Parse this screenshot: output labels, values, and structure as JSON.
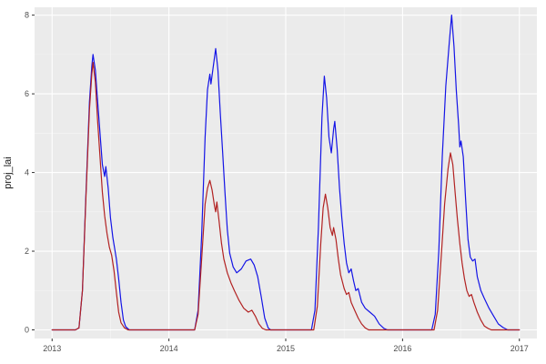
{
  "chart_data": {
    "type": "line",
    "title": "",
    "xlabel": "",
    "ylabel": "proj_lai",
    "grid": true,
    "legend": "none",
    "x_domain": [
      2012.85,
      2017.15
    ],
    "y_domain": [
      -0.22,
      8.2
    ],
    "x_major_ticks": [
      2013,
      2014,
      2015,
      2016,
      2017
    ],
    "x_tick_labels": [
      "2013",
      "2014",
      "2015",
      "2016",
      "2017"
    ],
    "x_minor_ticks": [
      2013.5,
      2014.5,
      2015.5,
      2016.5
    ],
    "y_major_ticks": [
      0,
      2,
      4,
      6,
      8
    ],
    "y_tick_labels": [
      "0",
      "2",
      "4",
      "6",
      "8"
    ],
    "y_minor_ticks": [
      1,
      3,
      5,
      7
    ],
    "colors": {
      "panel_background": "#EBEBEB",
      "plot_background": "#FFFFFF",
      "grid_major": "#FFFFFF",
      "grid_minor": "#F5F5F5",
      "tick_mark": "#333333",
      "tick_text": "#4D4D4D",
      "axis_title": "#1A1A1A",
      "series_blue": "#1414E6",
      "series_red": "#B22222"
    },
    "series": [
      {
        "name": "blue-series",
        "color": "#1414E6",
        "points": [
          [
            2013.0,
            0
          ],
          [
            2013.05,
            0
          ],
          [
            2013.1,
            0
          ],
          [
            2013.15,
            0
          ],
          [
            2013.2,
            0
          ],
          [
            2013.23,
            0.05
          ],
          [
            2013.26,
            1.0
          ],
          [
            2013.29,
            3.5
          ],
          [
            2013.32,
            5.8
          ],
          [
            2013.34,
            6.7
          ],
          [
            2013.35,
            7.0
          ],
          [
            2013.37,
            6.6
          ],
          [
            2013.39,
            5.8
          ],
          [
            2013.41,
            5.0
          ],
          [
            2013.43,
            4.2
          ],
          [
            2013.45,
            3.9
          ],
          [
            2013.46,
            4.15
          ],
          [
            2013.48,
            3.6
          ],
          [
            2013.5,
            2.85
          ],
          [
            2013.52,
            2.35
          ],
          [
            2013.55,
            1.8
          ],
          [
            2013.57,
            1.3
          ],
          [
            2013.59,
            0.7
          ],
          [
            2013.61,
            0.25
          ],
          [
            2013.63,
            0.08
          ],
          [
            2013.66,
            0
          ],
          [
            2013.75,
            0
          ],
          [
            2013.85,
            0
          ],
          [
            2013.95,
            0
          ],
          [
            2014.05,
            0
          ],
          [
            2014.15,
            0
          ],
          [
            2014.22,
            0
          ],
          [
            2014.25,
            0.5
          ],
          [
            2014.28,
            2.4
          ],
          [
            2014.31,
            4.9
          ],
          [
            2014.33,
            6.1
          ],
          [
            2014.35,
            6.5
          ],
          [
            2014.36,
            6.25
          ],
          [
            2014.38,
            6.7
          ],
          [
            2014.4,
            7.15
          ],
          [
            2014.42,
            6.6
          ],
          [
            2014.44,
            5.5
          ],
          [
            2014.46,
            4.5
          ],
          [
            2014.48,
            3.5
          ],
          [
            2014.5,
            2.55
          ],
          [
            2014.52,
            1.95
          ],
          [
            2014.55,
            1.6
          ],
          [
            2014.58,
            1.45
          ],
          [
            2014.62,
            1.55
          ],
          [
            2014.66,
            1.75
          ],
          [
            2014.7,
            1.8
          ],
          [
            2014.73,
            1.65
          ],
          [
            2014.76,
            1.35
          ],
          [
            2014.79,
            0.85
          ],
          [
            2014.82,
            0.3
          ],
          [
            2014.85,
            0.05
          ],
          [
            2014.87,
            0
          ],
          [
            2014.95,
            0
          ],
          [
            2015.05,
            0
          ],
          [
            2015.15,
            0
          ],
          [
            2015.22,
            0
          ],
          [
            2015.25,
            0.5
          ],
          [
            2015.28,
            2.6
          ],
          [
            2015.31,
            5.4
          ],
          [
            2015.33,
            6.45
          ],
          [
            2015.35,
            5.9
          ],
          [
            2015.37,
            4.9
          ],
          [
            2015.39,
            4.5
          ],
          [
            2015.41,
            5.1
          ],
          [
            2015.42,
            5.3
          ],
          [
            2015.44,
            4.6
          ],
          [
            2015.46,
            3.6
          ],
          [
            2015.48,
            2.85
          ],
          [
            2015.5,
            2.2
          ],
          [
            2015.52,
            1.7
          ],
          [
            2015.54,
            1.45
          ],
          [
            2015.56,
            1.55
          ],
          [
            2015.58,
            1.25
          ],
          [
            2015.6,
            1.0
          ],
          [
            2015.62,
            1.05
          ],
          [
            2015.65,
            0.7
          ],
          [
            2015.68,
            0.55
          ],
          [
            2015.72,
            0.45
          ],
          [
            2015.76,
            0.35
          ],
          [
            2015.8,
            0.15
          ],
          [
            2015.84,
            0.04
          ],
          [
            2015.87,
            0
          ],
          [
            2015.95,
            0
          ],
          [
            2016.05,
            0
          ],
          [
            2016.15,
            0
          ],
          [
            2016.25,
            0
          ],
          [
            2016.28,
            0.4
          ],
          [
            2016.31,
            2.0
          ],
          [
            2016.34,
            4.4
          ],
          [
            2016.37,
            6.2
          ],
          [
            2016.4,
            7.3
          ],
          [
            2016.42,
            8.0
          ],
          [
            2016.44,
            7.2
          ],
          [
            2016.46,
            6.1
          ],
          [
            2016.48,
            5.2
          ],
          [
            2016.49,
            4.65
          ],
          [
            2016.5,
            4.8
          ],
          [
            2016.52,
            4.4
          ],
          [
            2016.54,
            3.3
          ],
          [
            2016.56,
            2.3
          ],
          [
            2016.58,
            1.85
          ],
          [
            2016.6,
            1.75
          ],
          [
            2016.62,
            1.8
          ],
          [
            2016.64,
            1.35
          ],
          [
            2016.67,
            1.0
          ],
          [
            2016.7,
            0.8
          ],
          [
            2016.74,
            0.55
          ],
          [
            2016.78,
            0.35
          ],
          [
            2016.82,
            0.15
          ],
          [
            2016.86,
            0.06
          ],
          [
            2016.9,
            0
          ],
          [
            2016.95,
            0
          ],
          [
            2017.0,
            0
          ]
        ]
      },
      {
        "name": "red-series",
        "color": "#B22222",
        "points": [
          [
            2013.0,
            0
          ],
          [
            2013.05,
            0
          ],
          [
            2013.1,
            0
          ],
          [
            2013.15,
            0
          ],
          [
            2013.2,
            0
          ],
          [
            2013.23,
            0.05
          ],
          [
            2013.26,
            1.0
          ],
          [
            2013.29,
            3.4
          ],
          [
            2013.32,
            5.6
          ],
          [
            2013.34,
            6.5
          ],
          [
            2013.35,
            6.8
          ],
          [
            2013.37,
            6.3
          ],
          [
            2013.39,
            5.3
          ],
          [
            2013.41,
            4.4
          ],
          [
            2013.43,
            3.5
          ],
          [
            2013.45,
            2.9
          ],
          [
            2013.47,
            2.45
          ],
          [
            2013.49,
            2.1
          ],
          [
            2013.51,
            1.9
          ],
          [
            2013.53,
            1.5
          ],
          [
            2013.55,
            0.95
          ],
          [
            2013.57,
            0.45
          ],
          [
            2013.59,
            0.18
          ],
          [
            2013.62,
            0.05
          ],
          [
            2013.65,
            0
          ],
          [
            2013.75,
            0
          ],
          [
            2013.85,
            0
          ],
          [
            2013.95,
            0
          ],
          [
            2014.05,
            0
          ],
          [
            2014.15,
            0
          ],
          [
            2014.22,
            0
          ],
          [
            2014.25,
            0.4
          ],
          [
            2014.28,
            1.8
          ],
          [
            2014.31,
            3.2
          ],
          [
            2014.33,
            3.6
          ],
          [
            2014.35,
            3.8
          ],
          [
            2014.37,
            3.55
          ],
          [
            2014.39,
            3.15
          ],
          [
            2014.4,
            3.0
          ],
          [
            2014.41,
            3.25
          ],
          [
            2014.43,
            2.75
          ],
          [
            2014.45,
            2.2
          ],
          [
            2014.47,
            1.8
          ],
          [
            2014.5,
            1.45
          ],
          [
            2014.53,
            1.2
          ],
          [
            2014.56,
            1.0
          ],
          [
            2014.6,
            0.75
          ],
          [
            2014.64,
            0.55
          ],
          [
            2014.68,
            0.45
          ],
          [
            2014.71,
            0.5
          ],
          [
            2014.74,
            0.35
          ],
          [
            2014.77,
            0.15
          ],
          [
            2014.8,
            0.04
          ],
          [
            2014.83,
            0
          ],
          [
            2014.95,
            0
          ],
          [
            2015.05,
            0
          ],
          [
            2015.15,
            0
          ],
          [
            2015.24,
            0
          ],
          [
            2015.27,
            0.6
          ],
          [
            2015.3,
            2.2
          ],
          [
            2015.32,
            3.1
          ],
          [
            2015.34,
            3.45
          ],
          [
            2015.36,
            3.1
          ],
          [
            2015.38,
            2.6
          ],
          [
            2015.4,
            2.4
          ],
          [
            2015.41,
            2.6
          ],
          [
            2015.43,
            2.3
          ],
          [
            2015.45,
            1.8
          ],
          [
            2015.47,
            1.4
          ],
          [
            2015.5,
            1.05
          ],
          [
            2015.52,
            0.9
          ],
          [
            2015.54,
            0.95
          ],
          [
            2015.56,
            0.7
          ],
          [
            2015.59,
            0.5
          ],
          [
            2015.62,
            0.3
          ],
          [
            2015.65,
            0.15
          ],
          [
            2015.68,
            0.05
          ],
          [
            2015.71,
            0
          ],
          [
            2015.8,
            0
          ],
          [
            2015.9,
            0
          ],
          [
            2016.0,
            0
          ],
          [
            2016.1,
            0
          ],
          [
            2016.2,
            0
          ],
          [
            2016.27,
            0
          ],
          [
            2016.3,
            0.5
          ],
          [
            2016.33,
            1.8
          ],
          [
            2016.36,
            3.2
          ],
          [
            2016.39,
            4.1
          ],
          [
            2016.41,
            4.5
          ],
          [
            2016.43,
            4.2
          ],
          [
            2016.45,
            3.5
          ],
          [
            2016.47,
            2.8
          ],
          [
            2016.49,
            2.2
          ],
          [
            2016.51,
            1.7
          ],
          [
            2016.53,
            1.3
          ],
          [
            2016.55,
            1.0
          ],
          [
            2016.57,
            0.85
          ],
          [
            2016.59,
            0.9
          ],
          [
            2016.61,
            0.7
          ],
          [
            2016.64,
            0.45
          ],
          [
            2016.67,
            0.25
          ],
          [
            2016.7,
            0.1
          ],
          [
            2016.73,
            0.04
          ],
          [
            2016.76,
            0
          ],
          [
            2016.85,
            0
          ],
          [
            2016.95,
            0
          ],
          [
            2017.0,
            0
          ]
        ]
      }
    ]
  }
}
